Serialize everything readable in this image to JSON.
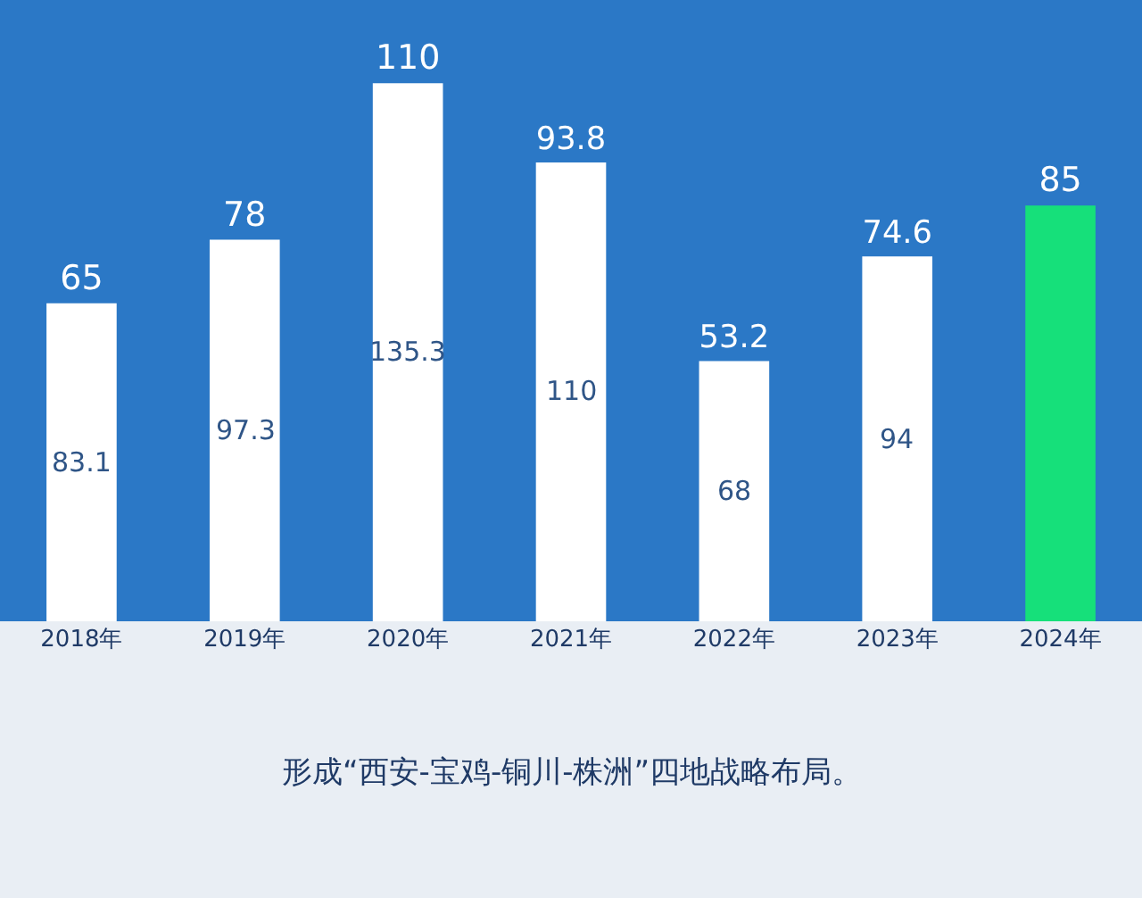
{
  "chart_data": {
    "type": "bar",
    "categories": [
      "2018年",
      "2019年",
      "2020年",
      "2021年",
      "2022年",
      "2023年",
      "2024年"
    ],
    "values": [
      65,
      78,
      110,
      93.8,
      53.2,
      74.6,
      85
    ],
    "colors": [
      "#ffffff",
      "#ffffff",
      "#ffffff",
      "#ffffff",
      "#ffffff",
      "#ffffff",
      "#16e07a"
    ],
    "data_labels": true,
    "ylim": [
      0,
      127
    ],
    "tick_labels": "x",
    "grid": false,
    "annotations": [
      "83.1",
      "97.3",
      "135.3",
      "110",
      "68",
      "94",
      "形成“西安-宝鸡-铜川-株洲”四地战略布局。"
    ]
  }
}
